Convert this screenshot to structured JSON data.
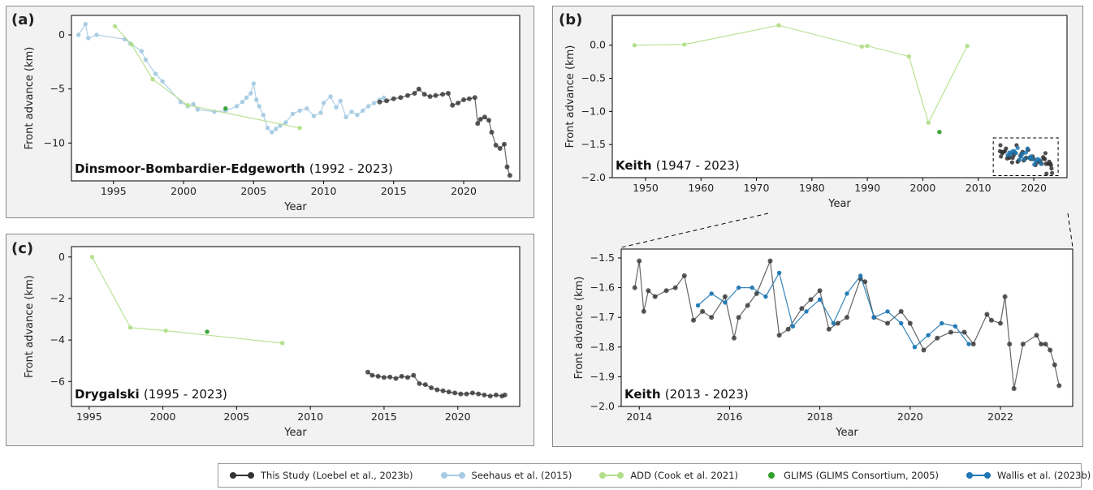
{
  "panels": [
    {
      "letter": "(a)",
      "title": "Dinsmoor-Bombardier-Edgeworth",
      "range": "(1992 - 2023)",
      "xlabel": "Year",
      "ylabel": "Front advance (km)",
      "xlim": [
        1992,
        2024
      ],
      "ylim": [
        -13.5,
        1.8
      ],
      "xticks": [
        1995,
        2000,
        2005,
        2010,
        2015,
        2020
      ],
      "yticks": [
        0,
        -5,
        -10
      ]
    },
    {
      "letter": "(b)",
      "title": "Keith",
      "range": "(1947 - 2023)",
      "xlabel": "Year",
      "ylabel": "Front advance (km)",
      "xlim": [
        1944,
        2026
      ],
      "ylim": [
        -2.0,
        0.45
      ],
      "xticks": [
        1950,
        1960,
        1970,
        1980,
        1990,
        2000,
        2010,
        2020
      ],
      "yticks": [
        0.0,
        -0.5,
        -1.0,
        -1.5,
        -2.0
      ]
    },
    {
      "letter": "(c)",
      "title": "Drygalski",
      "range": "(1995 - 2023)",
      "xlabel": "Year",
      "ylabel": "Front advance (km)",
      "xlim": [
        1993.8,
        2024.2
      ],
      "ylim": [
        -7.2,
        0.5
      ],
      "xticks": [
        1995,
        2000,
        2005,
        2010,
        2015,
        2020
      ],
      "yticks": [
        0,
        -2,
        -4,
        -6
      ]
    },
    {
      "letter": "",
      "title": "Keith",
      "range": "(2013 - 2023)",
      "xlabel": "Year",
      "ylabel": "Front advance (km)",
      "xlim": [
        2013.6,
        2023.6
      ],
      "ylim": [
        -2.0,
        -1.47
      ],
      "xticks": [
        2014,
        2016,
        2018,
        2020,
        2022
      ],
      "yticks": [
        -1.5,
        -1.6,
        -1.7,
        -1.8,
        -1.9,
        -2.0
      ]
    }
  ],
  "legend": [
    {
      "label": "This Study (Loebel et al., 2023b)",
      "color": "#333333"
    },
    {
      "label": "Seehaus et al. (2015)",
      "color": "#a6cbe3"
    },
    {
      "label": "ADD (Cook et al. 2021)",
      "color": "#b2df8a"
    },
    {
      "label": "GLIMS (GLIMS Consortium, 2005)",
      "color": "#33a02c"
    },
    {
      "label": "Wallis et al. (2023b)",
      "color": "#1f78b4"
    }
  ],
  "chart_data": [
    {
      "type": "line",
      "title": "Dinsmoor-Bombardier-Edgeworth (1992 - 2023)",
      "xlabel": "Year",
      "ylabel": "Front advance (km)",
      "xlim": [
        1992,
        2024
      ],
      "ylim": [
        -13.5,
        1.8
      ],
      "series": [
        {
          "name": "Seehaus et al. (2015)",
          "x": [
            1992.5,
            1993.0,
            1993.2,
            1993.8,
            1995.8,
            1996.2,
            1997.0,
            1997.3,
            1998.0,
            1998.5,
            1999.8,
            2000.3,
            2000.7,
            2001.0,
            2002.2,
            2003.0,
            2003.8,
            2004.2,
            2004.5,
            2004.8,
            2005.0,
            2005.2,
            2005.4,
            2005.7,
            2006.0,
            2006.3,
            2006.6,
            2006.9,
            2007.3,
            2007.8,
            2008.3,
            2008.8,
            2009.3,
            2009.8,
            2010.0,
            2010.5,
            2010.9,
            2011.2,
            2011.6,
            2012.0,
            2012.4,
            2012.8,
            2013.2,
            2013.6,
            2014.0,
            2014.3
          ],
          "y": [
            0.0,
            1.0,
            -0.3,
            0.0,
            -0.4,
            -0.8,
            -1.5,
            -2.3,
            -3.6,
            -4.3,
            -6.2,
            -6.6,
            -6.4,
            -6.9,
            -7.1,
            -7.0,
            -6.6,
            -6.2,
            -5.8,
            -5.4,
            -4.5,
            -6.0,
            -6.6,
            -7.4,
            -8.6,
            -9.0,
            -8.7,
            -8.4,
            -8.1,
            -7.3,
            -7.0,
            -6.8,
            -7.5,
            -7.2,
            -6.3,
            -5.7,
            -6.7,
            -6.1,
            -7.6,
            -7.1,
            -7.4,
            -7.0,
            -6.6,
            -6.3,
            -6.0,
            -5.8
          ]
        },
        {
          "name": "ADD (Cook et al. 2021)",
          "x": [
            1995.1,
            1996.3,
            1997.8,
            2000.3,
            2008.3
          ],
          "y": [
            0.8,
            -0.9,
            -4.1,
            -6.5,
            -8.6
          ]
        },
        {
          "name": "GLIMS (GLIMS Consortium, 2005)",
          "x": [
            2003.0
          ],
          "y": [
            -6.8
          ]
        },
        {
          "name": "This Study (Loebel et al., 2023b)",
          "x": [
            2014.0,
            2014.5,
            2015.0,
            2015.5,
            2016.0,
            2016.5,
            2016.8,
            2017.2,
            2017.6,
            2018.0,
            2018.5,
            2018.9,
            2019.2,
            2019.6,
            2020.0,
            2020.4,
            2020.8,
            2021.0,
            2021.2,
            2021.5,
            2021.8,
            2022.0,
            2022.3,
            2022.6,
            2022.9,
            2023.1,
            2023.3
          ],
          "y": [
            -6.2,
            -6.1,
            -5.9,
            -5.8,
            -5.6,
            -5.4,
            -5.0,
            -5.5,
            -5.7,
            -5.6,
            -5.5,
            -5.4,
            -6.5,
            -6.3,
            -6.0,
            -5.9,
            -5.8,
            -8.2,
            -7.8,
            -7.6,
            -7.9,
            -9.0,
            -10.2,
            -10.5,
            -10.1,
            -12.2,
            -13.0
          ]
        }
      ]
    },
    {
      "type": "line",
      "title": "Keith (1947 - 2023)",
      "xlabel": "Year",
      "ylabel": "Front advance (km)",
      "xlim": [
        1944,
        2026
      ],
      "ylim": [
        -2.0,
        0.45
      ],
      "series": [
        {
          "name": "ADD (Cook et al. 2021)",
          "x": [
            1948,
            1957,
            1974,
            1989,
            1990,
            1997.5,
            2001,
            2008
          ],
          "y": [
            0.0,
            0.01,
            0.3,
            -0.02,
            -0.01,
            -0.17,
            -1.17,
            -0.01
          ]
        },
        {
          "name": "GLIMS (GLIMS Consortium, 2005)",
          "x": [
            2003
          ],
          "y": [
            -1.31
          ]
        }
      ]
    },
    {
      "type": "line",
      "title": "Drygalski (1995 - 2023)",
      "xlabel": "Year",
      "ylabel": "Front advance (km)",
      "xlim": [
        1993.8,
        2024.2
      ],
      "ylim": [
        -7.2,
        0.5
      ],
      "series": [
        {
          "name": "ADD (Cook et al. 2021)",
          "x": [
            1995.2,
            1997.8,
            2000.2,
            2008.1
          ],
          "y": [
            0.0,
            -3.4,
            -3.55,
            -4.15
          ]
        },
        {
          "name": "GLIMS (GLIMS Consortium, 2005)",
          "x": [
            2003.0
          ],
          "y": [
            -3.6
          ]
        },
        {
          "name": "This Study (Loebel et al., 2023b)",
          "x": [
            2013.9,
            2014.2,
            2014.6,
            2015.0,
            2015.4,
            2015.8,
            2016.2,
            2016.6,
            2017.0,
            2017.4,
            2017.8,
            2018.2,
            2018.6,
            2019.0,
            2019.4,
            2019.8,
            2020.2,
            2020.6,
            2021.0,
            2021.4,
            2021.8,
            2022.2,
            2022.6,
            2023.0,
            2023.2
          ],
          "y": [
            -5.55,
            -5.7,
            -5.75,
            -5.8,
            -5.78,
            -5.85,
            -5.75,
            -5.8,
            -5.7,
            -6.1,
            -6.15,
            -6.3,
            -6.4,
            -6.45,
            -6.5,
            -6.55,
            -6.6,
            -6.6,
            -6.55,
            -6.6,
            -6.65,
            -6.7,
            -6.65,
            -6.7,
            -6.65
          ]
        }
      ]
    },
    {
      "type": "line",
      "title": "Keith (2013 - 2023)",
      "xlabel": "Year",
      "ylabel": "Front advance (km)",
      "xlim": [
        2013.6,
        2023.6
      ],
      "ylim": [
        -2.0,
        -1.47
      ],
      "series": [
        {
          "name": "This Study (Loebel et al., 2023b)",
          "x": [
            2013.9,
            2014.0,
            2014.1,
            2014.2,
            2014.35,
            2014.6,
            2014.8,
            2015.0,
            2015.2,
            2015.4,
            2015.6,
            2015.9,
            2016.1,
            2016.2,
            2016.4,
            2016.6,
            2016.9,
            2017.1,
            2017.3,
            2017.6,
            2017.8,
            2018.0,
            2018.2,
            2018.4,
            2018.6,
            2018.9,
            2019.0,
            2019.2,
            2019.5,
            2019.8,
            2020.0,
            2020.3,
            2020.6,
            2020.9,
            2021.2,
            2021.4,
            2021.7,
            2021.8,
            2022.0,
            2022.1,
            2022.2,
            2022.3,
            2022.5,
            2022.8,
            2022.9,
            2023.0,
            2023.1,
            2023.2,
            2023.3
          ],
          "y": [
            -1.6,
            -1.51,
            -1.68,
            -1.61,
            -1.63,
            -1.61,
            -1.6,
            -1.56,
            -1.71,
            -1.68,
            -1.7,
            -1.63,
            -1.77,
            -1.7,
            -1.66,
            -1.62,
            -1.51,
            -1.76,
            -1.74,
            -1.67,
            -1.64,
            -1.61,
            -1.74,
            -1.72,
            -1.7,
            -1.57,
            -1.58,
            -1.7,
            -1.72,
            -1.68,
            -1.72,
            -1.81,
            -1.77,
            -1.75,
            -1.75,
            -1.79,
            -1.69,
            -1.71,
            -1.72,
            -1.63,
            -1.79,
            -1.94,
            -1.79,
            -1.76,
            -1.79,
            -1.79,
            -1.81,
            -1.86,
            -1.93
          ]
        },
        {
          "name": "Wallis et al. (2023b)",
          "x": [
            2015.3,
            2015.6,
            2015.9,
            2016.2,
            2016.5,
            2016.8,
            2017.1,
            2017.4,
            2017.7,
            2018.0,
            2018.3,
            2018.6,
            2018.9,
            2019.2,
            2019.5,
            2019.8,
            2020.1,
            2020.4,
            2020.7,
            2021.0,
            2021.3
          ],
          "y": [
            -1.66,
            -1.62,
            -1.65,
            -1.6,
            -1.6,
            -1.63,
            -1.55,
            -1.73,
            -1.68,
            -1.64,
            -1.72,
            -1.62,
            -1.56,
            -1.7,
            -1.68,
            -1.72,
            -1.8,
            -1.76,
            -1.72,
            -1.73,
            -1.79
          ]
        }
      ]
    }
  ]
}
